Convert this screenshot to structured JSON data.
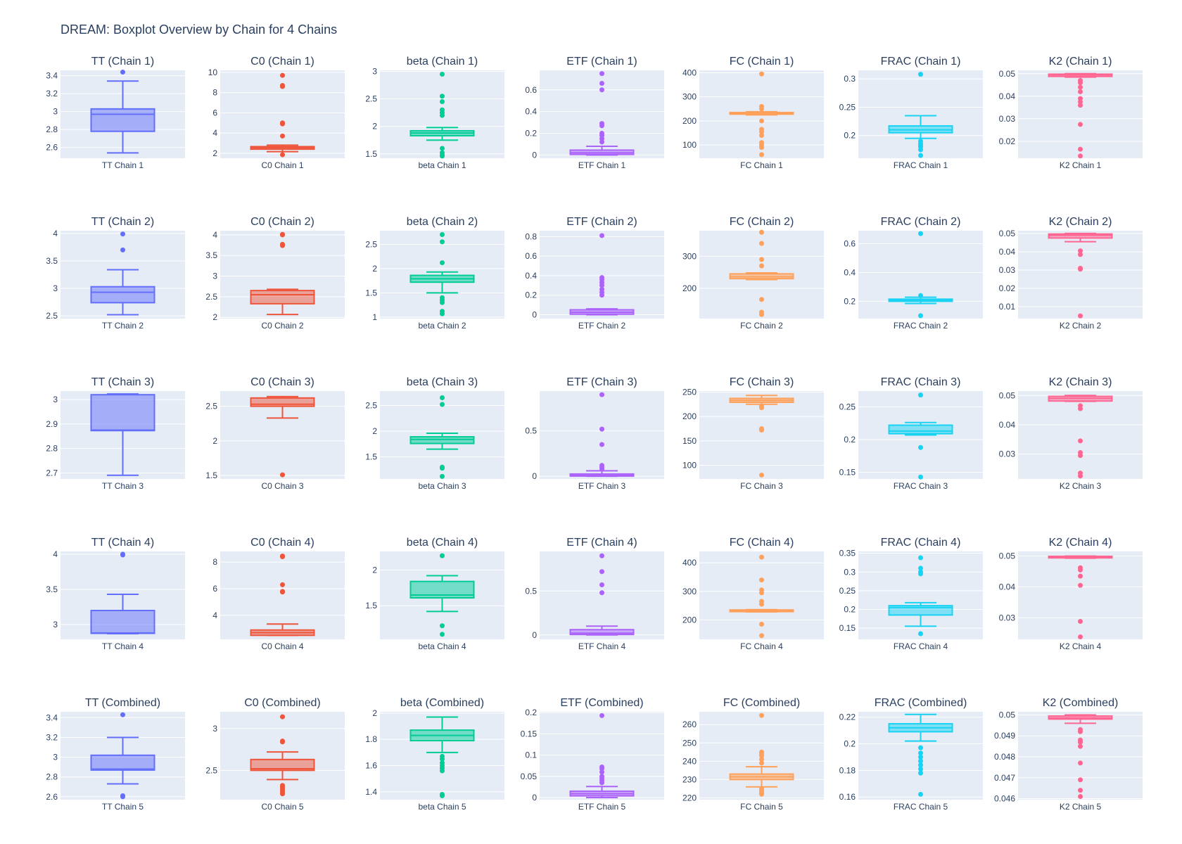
{
  "title": "DREAM: Boxplot Overview by Chain for 4 Chains",
  "colors": {
    "TT": "#636efa",
    "C0": "#ef553b",
    "beta": "#00cc96",
    "ETF": "#ab63fa",
    "FC": "#ffa15a",
    "FRAC": "#19d3f3",
    "K2": "#ff6692",
    "plot_bg": "#e5ecf6",
    "grid": "#ffffff",
    "text": "#2a3f5f"
  },
  "chart_data": [
    {
      "type": "box",
      "title": "TT (Chain 1)",
      "category": "TT Chain 1",
      "param": "TT",
      "ylim": [
        2.48,
        3.46
      ],
      "yticks": [
        2.6,
        2.8,
        3,
        3.2,
        3.4
      ],
      "box": {
        "min": 2.54,
        "q1": 2.78,
        "median": 2.97,
        "q3": 3.03,
        "max": 3.34
      },
      "outliers": [
        3.44
      ]
    },
    {
      "type": "box",
      "title": "C0 (Chain 1)",
      "category": "C0 Chain 1",
      "param": "C0",
      "ylim": [
        1.5,
        10.2
      ],
      "yticks": [
        2,
        4,
        6,
        8,
        10
      ],
      "box": {
        "min": 2.15,
        "q1": 2.4,
        "median": 2.55,
        "q3": 2.65,
        "max": 2.8
      },
      "outliers": [
        1.85,
        3.7,
        4.9,
        5.0,
        8.6,
        8.7,
        9.7
      ]
    },
    {
      "type": "box",
      "title": "beta (Chain 1)",
      "category": "beta Chain 1",
      "param": "beta",
      "ylim": [
        1.42,
        3.02
      ],
      "yticks": [
        1.5,
        2,
        2.5,
        3
      ],
      "box": {
        "min": 1.75,
        "q1": 1.83,
        "median": 1.88,
        "q3": 1.92,
        "max": 1.98
      },
      "outliers": [
        1.46,
        1.48,
        1.52,
        1.6,
        2.2,
        2.25,
        2.3,
        2.45,
        2.55,
        2.95
      ]
    },
    {
      "type": "box",
      "title": "ETF (Chain 1)",
      "category": "ETF Chain 1",
      "param": "ETF",
      "ylim": [
        -0.03,
        0.78
      ],
      "yticks": [
        0,
        0.2,
        0.4,
        0.6
      ],
      "box": {
        "min": 0,
        "q1": 0.005,
        "median": 0.02,
        "q3": 0.045,
        "max": 0.08
      },
      "outliers": [
        0.12,
        0.15,
        0.18,
        0.2,
        0.27,
        0.29,
        0.6,
        0.66,
        0.75
      ]
    },
    {
      "type": "box",
      "title": "FC (Chain 1)",
      "category": "FC Chain 1",
      "param": "FC",
      "ylim": [
        45,
        410
      ],
      "yticks": [
        100,
        200,
        300,
        400
      ],
      "box": {
        "min": 225,
        "q1": 228,
        "median": 232,
        "q3": 235,
        "max": 238
      },
      "outliers": [
        60,
        90,
        100,
        110,
        140,
        155,
        165,
        200,
        250,
        260,
        395
      ]
    },
    {
      "type": "box",
      "title": "FRAC (Chain 1)",
      "category": "FRAC Chain 1",
      "param": "FRAC",
      "ylim": [
        0.16,
        0.315
      ],
      "yticks": [
        0.2,
        0.25,
        0.3
      ],
      "box": {
        "min": 0.195,
        "q1": 0.205,
        "median": 0.21,
        "q3": 0.217,
        "max": 0.235
      },
      "outliers": [
        0.165,
        0.175,
        0.18,
        0.183,
        0.186,
        0.19,
        0.308
      ]
    },
    {
      "type": "box",
      "title": "K2 (Chain 1)",
      "category": "K2 Chain 1",
      "param": "K2",
      "ylim": [
        0.0125,
        0.0515
      ],
      "yticks": [
        0.02,
        0.03,
        0.04,
        0.05
      ],
      "box": {
        "min": 0.0485,
        "q1": 0.0488,
        "median": 0.0495,
        "q3": 0.0498,
        "max": 0.05
      },
      "outliers": [
        0.0135,
        0.0165,
        0.0275,
        0.036,
        0.0375,
        0.039,
        0.042,
        0.044,
        0.046,
        0.047
      ]
    },
    {
      "type": "box",
      "title": "TT (Chain 2)",
      "category": "TT Chain 2",
      "param": "TT",
      "ylim": [
        2.45,
        4.05
      ],
      "yticks": [
        2.5,
        3,
        3.5,
        4
      ],
      "box": {
        "min": 2.52,
        "q1": 2.74,
        "median": 2.93,
        "q3": 3.03,
        "max": 3.34
      },
      "outliers": [
        3.7,
        3.99
      ]
    },
    {
      "type": "box",
      "title": "C0 (Chain 2)",
      "category": "C0 Chain 2",
      "param": "C0",
      "ylim": [
        1.97,
        4.1
      ],
      "yticks": [
        2,
        2.5,
        3,
        3.5,
        4
      ],
      "box": {
        "min": 2.07,
        "q1": 2.33,
        "median": 2.55,
        "q3": 2.65,
        "max": 2.68
      },
      "outliers": [
        3.74,
        3.77,
        4.0,
        4.01
      ]
    },
    {
      "type": "box",
      "title": "beta (Chain 2)",
      "category": "beta Chain 2",
      "param": "beta",
      "ylim": [
        0.97,
        2.78
      ],
      "yticks": [
        1,
        1.5,
        2,
        2.5
      ],
      "box": {
        "min": 1.5,
        "q1": 1.72,
        "median": 1.79,
        "q3": 1.86,
        "max": 1.93
      },
      "outliers": [
        1.07,
        1.12,
        1.3,
        1.35,
        1.4,
        2.12,
        2.55,
        2.7
      ]
    },
    {
      "type": "box",
      "title": "ETF (Chain 2)",
      "category": "ETF Chain 2",
      "param": "ETF",
      "ylim": [
        -0.04,
        0.86
      ],
      "yticks": [
        0,
        0.2,
        0.4,
        0.6,
        0.8
      ],
      "box": {
        "min": 0,
        "q1": 0.005,
        "median": 0.025,
        "q3": 0.05,
        "max": 0.06
      },
      "outliers": [
        0.2,
        0.23,
        0.26,
        0.3,
        0.33,
        0.36,
        0.38,
        0.81
      ]
    },
    {
      "type": "box",
      "title": "FC (Chain 2)",
      "category": "FC Chain 2",
      "param": "FC",
      "ylim": [
        105,
        380
      ],
      "yticks": [
        200,
        300
      ],
      "box": {
        "min": 227,
        "q1": 230,
        "median": 236,
        "q3": 245,
        "max": 248
      },
      "outliers": [
        118,
        125,
        165,
        270,
        290,
        340,
        375
      ]
    },
    {
      "type": "box",
      "title": "FRAC (Chain 2)",
      "category": "FRAC Chain 2",
      "param": "FRAC",
      "ylim": [
        0.08,
        0.69
      ],
      "yticks": [
        0.2,
        0.4,
        0.6
      ],
      "box": {
        "min": 0.185,
        "q1": 0.2,
        "median": 0.208,
        "q3": 0.215,
        "max": 0.228
      },
      "outliers": [
        0.1,
        0.24,
        0.67
      ]
    },
    {
      "type": "box",
      "title": "K2 (Chain 2)",
      "category": "K2 Chain 2",
      "param": "K2",
      "ylim": [
        0.0035,
        0.0515
      ],
      "yticks": [
        0.01,
        0.02,
        0.03,
        0.04,
        0.05
      ],
      "box": {
        "min": 0.0455,
        "q1": 0.0475,
        "median": 0.049,
        "q3": 0.0497,
        "max": 0.05
      },
      "outliers": [
        0.005,
        0.0305,
        0.031,
        0.0385,
        0.0405
      ]
    },
    {
      "type": "box",
      "title": "TT (Chain 3)",
      "category": "TT Chain 3",
      "param": "TT",
      "ylim": [
        2.675,
        3.035
      ],
      "yticks": [
        2.7,
        2.8,
        2.9,
        3
      ],
      "box": {
        "min": 2.69,
        "q1": 2.873,
        "median": 2.875,
        "q3": 3.02,
        "max": 3.023
      },
      "outliers": []
    },
    {
      "type": "box",
      "title": "C0 (Chain 3)",
      "category": "C0 Chain 3",
      "param": "C0",
      "ylim": [
        1.45,
        2.72
      ],
      "yticks": [
        1.5,
        2,
        2.5
      ],
      "box": {
        "min": 2.33,
        "q1": 2.5,
        "median": 2.53,
        "q3": 2.62,
        "max": 2.64
      },
      "outliers": [
        1.51
      ]
    },
    {
      "type": "box",
      "title": "beta (Chain 3)",
      "category": "beta Chain 3",
      "param": "beta",
      "ylim": [
        1.07,
        2.78
      ],
      "yticks": [
        1.5,
        2,
        2.5
      ],
      "box": {
        "min": 1.65,
        "q1": 1.76,
        "median": 1.84,
        "q3": 1.89,
        "max": 1.96
      },
      "outliers": [
        1.12,
        1.28,
        1.3,
        2.52,
        2.65
      ]
    },
    {
      "type": "box",
      "title": "ETF (Chain 3)",
      "category": "ETF Chain 3",
      "param": "ETF",
      "ylim": [
        -0.03,
        0.94
      ],
      "yticks": [
        0,
        0.5
      ],
      "box": {
        "min": 0,
        "q1": 0.002,
        "median": 0.01,
        "q3": 0.025,
        "max": 0.06
      },
      "outliers": [
        0.08,
        0.1,
        0.12,
        0.35,
        0.52,
        0.9
      ]
    },
    {
      "type": "box",
      "title": "FC (Chain 3)",
      "category": "FC Chain 3",
      "param": "FC",
      "ylim": [
        72,
        252
      ],
      "yticks": [
        100,
        150,
        200,
        250
      ],
      "box": {
        "min": 225,
        "q1": 229,
        "median": 233,
        "q3": 237,
        "max": 243
      },
      "outliers": [
        80,
        172,
        175,
        218,
        221
      ]
    },
    {
      "type": "box",
      "title": "FRAC (Chain 3)",
      "category": "FRAC Chain 3",
      "param": "FRAC",
      "ylim": [
        0.14,
        0.274
      ],
      "yticks": [
        0.15,
        0.2,
        0.25
      ],
      "box": {
        "min": 0.207,
        "q1": 0.209,
        "median": 0.213,
        "q3": 0.222,
        "max": 0.226
      },
      "outliers": [
        0.143,
        0.188,
        0.268
      ]
    },
    {
      "type": "box",
      "title": "K2 (Chain 3)",
      "category": "K2 Chain 3",
      "param": "K2",
      "ylim": [
        0.0215,
        0.0515
      ],
      "yticks": [
        0.03,
        0.04,
        0.05
      ],
      "box": {
        "min": 0.048,
        "q1": 0.0481,
        "median": 0.049,
        "q3": 0.0497,
        "max": 0.05
      },
      "outliers": [
        0.0225,
        0.0235,
        0.0295,
        0.0305,
        0.0345,
        0.0455,
        0.0465
      ]
    },
    {
      "type": "box",
      "title": "TT (Chain 4)",
      "category": "TT Chain 4",
      "param": "TT",
      "ylim": [
        2.79,
        4.04
      ],
      "yticks": [
        3,
        3.5,
        4
      ],
      "box": {
        "min": 2.87,
        "q1": 2.875,
        "median": 2.88,
        "q3": 3.2,
        "max": 3.43
      },
      "outliers": [
        3.99,
        4.0
      ]
    },
    {
      "type": "box",
      "title": "C0 (Chain 4)",
      "category": "C0 Chain 4",
      "param": "C0",
      "ylim": [
        2.2,
        8.8
      ],
      "yticks": [
        4,
        6,
        8
      ],
      "box": {
        "min": 2.5,
        "q1": 2.5,
        "median": 2.7,
        "q3": 2.9,
        "max": 3.35
      },
      "outliers": [
        5.75,
        5.8,
        6.3,
        8.4,
        8.45
      ]
    },
    {
      "type": "box",
      "title": "beta (Chain 4)",
      "category": "beta Chain 4",
      "param": "beta",
      "ylim": [
        1.03,
        2.26
      ],
      "yticks": [
        1.5,
        2
      ],
      "box": {
        "min": 1.42,
        "q1": 1.61,
        "median": 1.65,
        "q3": 1.84,
        "max": 1.92
      },
      "outliers": [
        1.1,
        1.22,
        2.2
      ]
    },
    {
      "type": "box",
      "title": "ETF (Chain 4)",
      "category": "ETF Chain 4",
      "param": "ETF",
      "ylim": [
        -0.05,
        0.95
      ],
      "yticks": [
        0,
        0.5
      ],
      "box": {
        "min": 0,
        "q1": 0.005,
        "median": 0.02,
        "q3": 0.06,
        "max": 0.1
      },
      "outliers": [
        0.48,
        0.57,
        0.72,
        0.9
      ]
    },
    {
      "type": "box",
      "title": "FC (Chain 4)",
      "category": "FC Chain 4",
      "param": "FC",
      "ylim": [
        132,
        440
      ],
      "yticks": [
        200,
        300,
        400
      ],
      "box": {
        "min": 228,
        "q1": 229,
        "median": 232,
        "q3": 235,
        "max": 236
      },
      "outliers": [
        145,
        185,
        255,
        265,
        295,
        305,
        340,
        420
      ]
    },
    {
      "type": "box",
      "title": "FRAC (Chain 4)",
      "category": "FRAC Chain 4",
      "param": "FRAC",
      "ylim": [
        0.12,
        0.355
      ],
      "yticks": [
        0.15,
        0.2,
        0.25,
        0.3,
        0.35
      ],
      "box": {
        "min": 0.155,
        "q1": 0.185,
        "median": 0.205,
        "q3": 0.21,
        "max": 0.218
      },
      "outliers": [
        0.135,
        0.295,
        0.3,
        0.31,
        0.338
      ]
    },
    {
      "type": "box",
      "title": "K2 (Chain 4)",
      "category": "K2 Chain 4",
      "param": "K2",
      "ylim": [
        0.023,
        0.0515
      ],
      "yticks": [
        0.03,
        0.04,
        0.05
      ],
      "box": {
        "min": 0.0493,
        "q1": 0.0494,
        "median": 0.0496,
        "q3": 0.0499,
        "max": 0.05
      },
      "outliers": [
        0.0238,
        0.0288,
        0.0405,
        0.0435,
        0.0455,
        0.0462
      ]
    },
    {
      "type": "box",
      "title": "TT (Combined)",
      "category": "TT Chain 5",
      "param": "TT",
      "ylim": [
        2.57,
        3.46
      ],
      "yticks": [
        2.6,
        2.8,
        3,
        3.2,
        3.4
      ],
      "box": {
        "min": 2.73,
        "q1": 2.87,
        "median": 2.88,
        "q3": 3.02,
        "max": 3.2
      },
      "outliers": [
        2.6,
        2.61,
        3.43
      ]
    },
    {
      "type": "box",
      "title": "C0 (Combined)",
      "category": "C0 Chain 5",
      "param": "C0",
      "ylim": [
        2.15,
        3.2
      ],
      "yticks": [
        2.5,
        3
      ],
      "box": {
        "min": 2.39,
        "q1": 2.5,
        "median": 2.52,
        "q3": 2.63,
        "max": 2.72
      },
      "outliers": [
        2.22,
        2.24,
        2.26,
        2.28,
        2.3,
        2.32,
        2.84,
        2.85,
        3.14
      ]
    },
    {
      "type": "box",
      "title": "beta (Combined)",
      "category": "beta Chain 5",
      "param": "beta",
      "ylim": [
        1.34,
        2.01
      ],
      "yticks": [
        1.4,
        1.6,
        1.8,
        2
      ],
      "box": {
        "min": 1.7,
        "q1": 1.79,
        "median": 1.83,
        "q3": 1.87,
        "max": 1.97
      },
      "outliers": [
        1.37,
        1.38,
        1.56,
        1.58,
        1.6,
        1.62,
        1.65,
        1.67
      ]
    },
    {
      "type": "box",
      "title": "ETF (Combined)",
      "category": "ETF Chain 5",
      "param": "ETF",
      "ylim": [
        -0.005,
        0.202
      ],
      "yticks": [
        0,
        0.05,
        0.1,
        0.15,
        0.2
      ],
      "box": {
        "min": 0,
        "q1": 0.004,
        "median": 0.009,
        "q3": 0.015,
        "max": 0.026
      },
      "outliers": [
        0.035,
        0.04,
        0.045,
        0.05,
        0.06,
        0.068,
        0.072,
        0.193
      ]
    },
    {
      "type": "box",
      "title": "FC (Combined)",
      "category": "FC Chain 5",
      "param": "FC",
      "ylim": [
        219,
        267
      ],
      "yticks": [
        220,
        230,
        240,
        250,
        260
      ],
      "box": {
        "min": 226,
        "q1": 230,
        "median": 231.5,
        "q3": 233,
        "max": 237
      },
      "outliers": [
        222,
        223,
        224,
        225,
        239,
        241,
        243,
        244,
        245,
        265
      ]
    },
    {
      "type": "box",
      "title": "FRAC (Combined)",
      "category": "FRAC Chain 5",
      "param": "FRAC",
      "ylim": [
        0.158,
        0.224
      ],
      "yticks": [
        0.16,
        0.18,
        0.2,
        0.22
      ],
      "box": {
        "min": 0.202,
        "q1": 0.209,
        "median": 0.212,
        "q3": 0.215,
        "max": 0.222
      },
      "outliers": [
        0.162,
        0.178,
        0.181,
        0.184,
        0.187,
        0.19,
        0.193,
        0.197
      ]
    },
    {
      "type": "box",
      "title": "K2 (Combined)",
      "category": "K2 Chain 5",
      "param": "K2",
      "ylim": [
        0.04595,
        0.05015
      ],
      "yticks": [
        0.046,
        0.047,
        0.048,
        0.049,
        0.05
      ],
      "box": {
        "min": 0.0496,
        "q1": 0.0498,
        "median": 0.04985,
        "q3": 0.04995,
        "max": 0.05
      },
      "outliers": [
        0.0461,
        0.0464,
        0.0469,
        0.0477,
        0.0485,
        0.0487,
        0.0488,
        0.0492,
        0.0493
      ]
    }
  ]
}
